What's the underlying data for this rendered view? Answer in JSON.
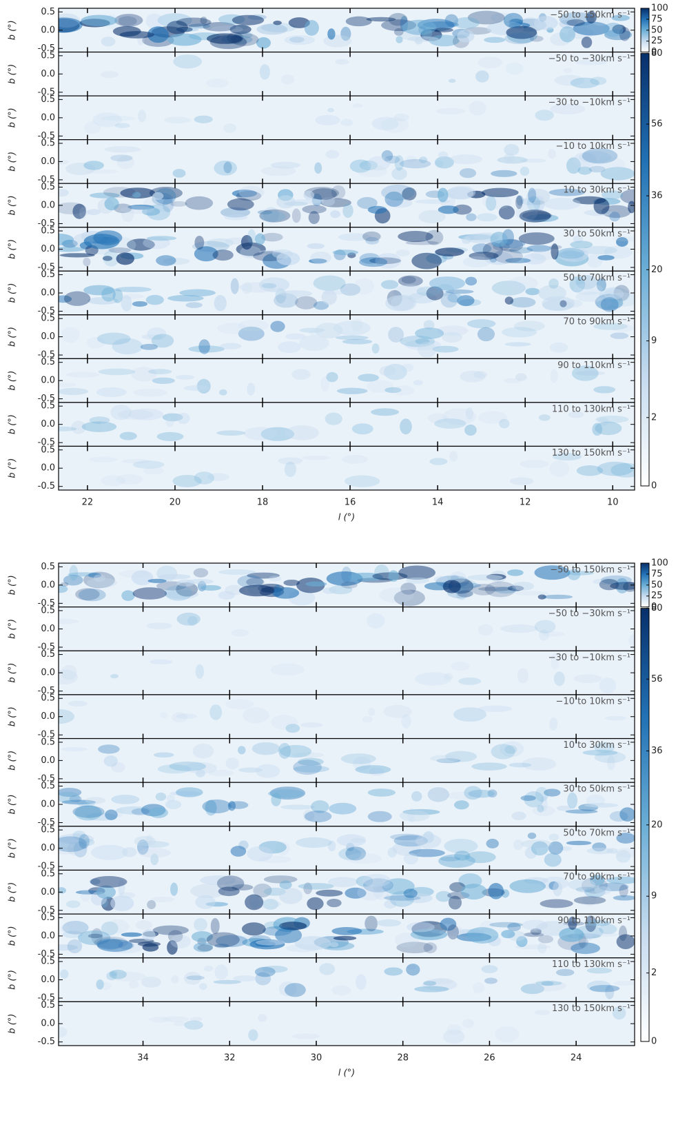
{
  "chart_data": [
    {
      "type": "map",
      "xlabel": "l (°)",
      "ylabel": "b (°)",
      "xlim": [
        22.66,
        9.5
      ],
      "xticks": [
        22,
        20,
        18,
        16,
        14,
        12,
        10
      ],
      "ylim": [
        -0.6,
        0.6
      ],
      "yticks": [
        {
          "value": 0.5,
          "label": "0.5"
        },
        {
          "value": 0,
          "label": "0.0"
        },
        {
          "value": -0.5,
          "label": "-0.5"
        }
      ],
      "panels": [
        "−50 to 150km s⁻¹",
        "−50 to −30km s⁻¹",
        "−30 to −10km s⁻¹",
        "−10 to 10km s⁻¹",
        "10 to 30km s⁻¹",
        "30 to 50km s⁻¹",
        "50 to 70km s⁻¹",
        "70 to 90km s⁻¹",
        "90 to 110km s⁻¹",
        "110 to 130km s⁻¹",
        "130 to 150km s⁻¹"
      ],
      "colorbars": [
        {
          "lim": [
            0,
            100
          ],
          "ticks": [
            0,
            25,
            50,
            75,
            100
          ],
          "scale": "linear"
        },
        {
          "lim": [
            0,
            80
          ],
          "ticks": [
            0,
            2,
            9,
            20,
            36,
            56,
            80
          ],
          "scale": "sqrt"
        }
      ],
      "colors": [
        "#ffffff",
        "#c6dbef",
        "#6baed6",
        "#2171b5",
        "#08306b"
      ]
    },
    {
      "type": "map",
      "xlabel": "l (°)",
      "ylabel": "b (°)",
      "xlim": [
        35.95,
        22.65
      ],
      "xticks": [
        34,
        32,
        30,
        28,
        26,
        24
      ],
      "ylim": [
        -0.6,
        0.6
      ],
      "yticks": [
        {
          "value": 0.5,
          "label": "0.5"
        },
        {
          "value": 0,
          "label": "0.0"
        },
        {
          "value": -0.5,
          "label": "-0.5"
        }
      ],
      "panels": [
        "−50 to 150km s⁻¹",
        "−50 to −30km s⁻¹",
        "−30 to −10km s⁻¹",
        "−10 to 10km s⁻¹",
        "10 to 30km s⁻¹",
        "30 to 50km s⁻¹",
        "50 to 70km s⁻¹",
        "70 to 90km s⁻¹",
        "90 to 110km s⁻¹",
        "110 to 130km s⁻¹",
        "130 to 150km s⁻¹"
      ],
      "colorbars": [
        {
          "lim": [
            0,
            100
          ],
          "ticks": [
            0,
            25,
            50,
            75,
            100
          ],
          "scale": "linear"
        },
        {
          "lim": [
            0,
            80
          ],
          "ticks": [
            0,
            2,
            9,
            20,
            36,
            56,
            80
          ],
          "scale": "sqrt"
        }
      ],
      "colors": [
        "#ffffff",
        "#c6dbef",
        "#6baed6",
        "#2171b5",
        "#08306b"
      ]
    }
  ]
}
